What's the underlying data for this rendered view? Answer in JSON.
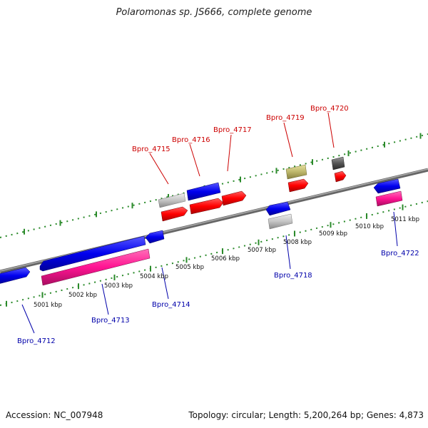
{
  "title": "Polaromonas sp. JS666, complete genome",
  "footer": {
    "accession": "Accession: NC_007948",
    "summary": "Topology: circular; Length: 5,200,264 bp; Genes: 4,873"
  },
  "scale_labels": [
    "5001 kbp",
    "5002 kbp",
    "5003 kbp",
    "5004 kbp",
    "5005 kbp",
    "5006 kbp",
    "5007 kbp",
    "5008 kbp",
    "5009 kbp",
    "5010 kbp",
    "5011 kbp"
  ],
  "gene_labels": {
    "top": [
      "Bpro_4715",
      "Bpro_4716",
      "Bpro_4717",
      "Bpro_4719",
      "Bpro_4720"
    ],
    "bottom": [
      "Bpro_4712",
      "Bpro_4713",
      "Bpro_4714",
      "Bpro_4718",
      "Bpro_4722"
    ]
  },
  "colors": {
    "forward_cds": "#ff0000",
    "reverse_cds": "#0000ee",
    "rna_pink": "#ff1493",
    "pseudo_grey": "#bbbbbb",
    "tan": "#bdb76b",
    "dark_grey": "#555555",
    "backbone": "#888888",
    "tick_green": "#2a8a2a",
    "label_red": "#cc0000",
    "label_blue": "#0000aa"
  }
}
